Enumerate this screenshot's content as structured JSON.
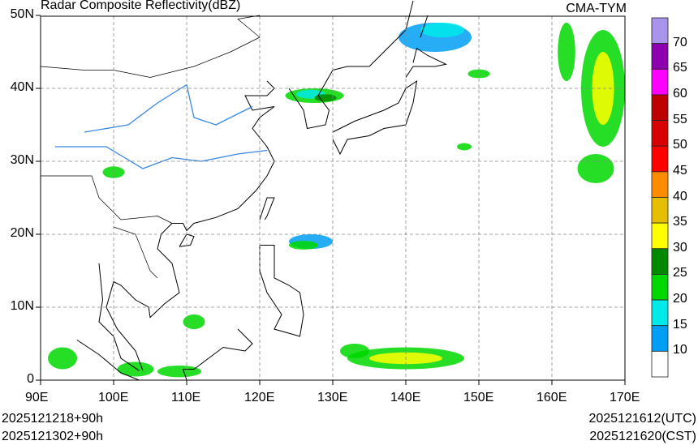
{
  "title": "Radar Composite Reflectivity(dBZ)",
  "model": "CMA-TYM",
  "lat_labels": [
    "50N",
    "40N",
    "30N",
    "20N",
    "10N",
    "0"
  ],
  "lon_labels": [
    "90E",
    "100E",
    "110E",
    "120E",
    "130E",
    "140E",
    "150E",
    "160E",
    "170E"
  ],
  "init_times": [
    "2025121218+90h",
    "2025121302+90h"
  ],
  "valid_utc": "2025121612(UTC)",
  "valid_cst": "2025121620(CST)",
  "colorbar": {
    "labels": [
      "70",
      "65",
      "60",
      "55",
      "50",
      "45",
      "40",
      "35",
      "30",
      "25",
      "20",
      "15",
      "10"
    ],
    "colors": [
      "#a894ea",
      "#8c00b0",
      "#ff00ff",
      "#bd0000",
      "#d80000",
      "#ff0000",
      "#ff8c00",
      "#e6be00",
      "#ffff00",
      "#008800",
      "#00d800",
      "#00eaea",
      "#009ff5",
      "#ffffff"
    ]
  },
  "extent": {
    "lon": [
      90,
      170
    ],
    "lat": [
      0,
      50
    ]
  }
}
